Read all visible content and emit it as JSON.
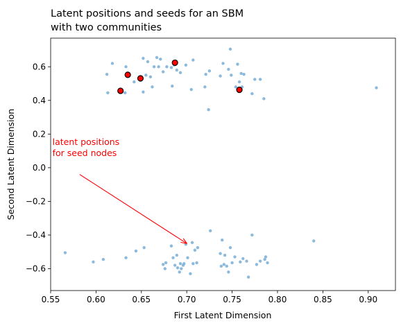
{
  "chart_data": {
    "type": "scatter",
    "title": [
      "Latent positions and seeds for an SBM",
      "with two communities"
    ],
    "xlabel": "First Latent Dimension",
    "ylabel": "Second Latent Dimension",
    "xlim": [
      0.55,
      0.93
    ],
    "ylim": [
      -0.73,
      0.77
    ],
    "xticks": [
      "0.55",
      "0.60",
      "0.65",
      "0.70",
      "0.75",
      "0.80",
      "0.85",
      "0.90"
    ],
    "yticks": [
      "0.6",
      "0.4",
      "0.2",
      "0.0",
      "−0.2",
      "−0.4",
      "−0.6"
    ],
    "grid": false,
    "series": [
      {
        "marker": "small-dot",
        "color": "#7fb2d8",
        "x": [
          0.612,
          0.613,
          0.618,
          0.632,
          0.633,
          0.642,
          0.647,
          0.652,
          0.652,
          0.655,
          0.657,
          0.66,
          0.662,
          0.664,
          0.667,
          0.669,
          0.671,
          0.674,
          0.678,
          0.683,
          0.684,
          0.686,
          0.689,
          0.693,
          0.699,
          0.705,
          0.707,
          0.72,
          0.721,
          0.724,
          0.725,
          0.737,
          0.74,
          0.746,
          0.748,
          0.749,
          0.754,
          0.756,
          0.758,
          0.76,
          0.761,
          0.763,
          0.772,
          0.775,
          0.781,
          0.785,
          0.909,
          0.566,
          0.597,
          0.608,
          0.633,
          0.644,
          0.653,
          0.674,
          0.676,
          0.677,
          0.683,
          0.685,
          0.687,
          0.689,
          0.69,
          0.692,
          0.693,
          0.694,
          0.696,
          0.697,
          0.699,
          0.701,
          0.704,
          0.706,
          0.707,
          0.709,
          0.711,
          0.712,
          0.726,
          0.737,
          0.738,
          0.739,
          0.741,
          0.742,
          0.744,
          0.746,
          0.748,
          0.75,
          0.753,
          0.759,
          0.762,
          0.766,
          0.768,
          0.772,
          0.777,
          0.781,
          0.786,
          0.787,
          0.789,
          0.84
        ],
        "y": [
          0.555,
          0.445,
          0.62,
          0.445,
          0.6,
          0.51,
          0.53,
          0.65,
          0.45,
          0.55,
          0.63,
          0.54,
          0.48,
          0.6,
          0.655,
          0.6,
          0.645,
          0.57,
          0.6,
          0.595,
          0.485,
          0.61,
          0.58,
          0.565,
          0.61,
          0.465,
          0.64,
          0.48,
          0.555,
          0.345,
          0.575,
          0.545,
          0.62,
          0.585,
          0.705,
          0.55,
          0.48,
          0.615,
          0.51,
          0.56,
          0.48,
          0.555,
          0.44,
          0.525,
          0.525,
          0.41,
          0.475,
          -0.505,
          -0.56,
          -0.545,
          -0.535,
          -0.495,
          -0.475,
          -0.575,
          -0.6,
          -0.565,
          -0.465,
          -0.535,
          -0.58,
          -0.52,
          -0.595,
          -0.62,
          -0.57,
          -0.6,
          -0.58,
          -0.57,
          -0.455,
          -0.535,
          -0.63,
          -0.445,
          -0.57,
          -0.49,
          -0.565,
          -0.475,
          -0.375,
          -0.51,
          -0.585,
          -0.43,
          -0.575,
          -0.52,
          -0.585,
          -0.62,
          -0.475,
          -0.565,
          -0.53,
          -0.56,
          -0.54,
          -0.555,
          -0.65,
          -0.4,
          -0.575,
          -0.555,
          -0.545,
          -0.53,
          -0.565,
          -0.435
        ]
      },
      {
        "marker": "seed",
        "color": "#ff0000",
        "edge": "#000000",
        "x": [
          0.627,
          0.635,
          0.649,
          0.687,
          0.758
        ],
        "y": [
          0.457,
          0.552,
          0.531,
          0.624,
          0.463
        ]
      }
    ],
    "annotation": {
      "text": [
        "latent positions",
        "for seed nodes"
      ],
      "color": "#ff0000",
      "text_at": [
        0.552,
        0.07
      ],
      "arrow_from": [
        0.582,
        -0.04
      ],
      "arrow_to": [
        0.7,
        -0.45
      ]
    }
  }
}
